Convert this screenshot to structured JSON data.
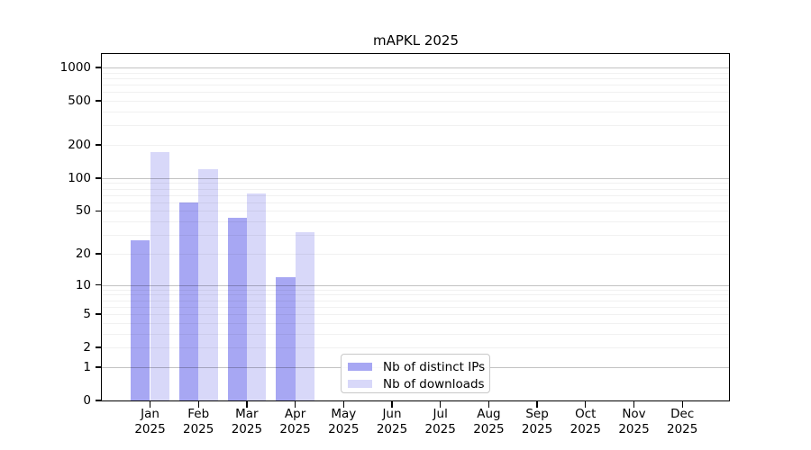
{
  "chart_data": {
    "type": "bar",
    "title": "mAPKL 2025",
    "categories": [
      "Jan",
      "Feb",
      "Mar",
      "Apr",
      "May",
      "Jun",
      "Jul",
      "Aug",
      "Sep",
      "Oct",
      "Nov",
      "Dec"
    ],
    "x_year_label": "2025",
    "series": [
      {
        "name": "Nb of distinct IPs",
        "color": "#a7a7f3",
        "values": [
          27,
          60,
          43,
          12,
          null,
          null,
          null,
          null,
          null,
          null,
          null,
          null
        ]
      },
      {
        "name": "Nb of downloads",
        "color": "#d8d8f9",
        "values": [
          173,
          120,
          73,
          32,
          null,
          null,
          null,
          null,
          null,
          null,
          null,
          null
        ]
      }
    ],
    "y_axis": {
      "ticks": [
        0,
        1,
        2,
        5,
        10,
        20,
        50,
        100,
        200,
        500,
        1000
      ],
      "scale": "log1p",
      "range": [
        0,
        1300
      ]
    },
    "grid": {
      "major_lines": [
        1,
        10,
        100,
        1000
      ],
      "minor_lines": "2-9 per decade",
      "grid_on": true
    },
    "legend": {
      "position": "lower-center",
      "items": [
        "Nb of distinct IPs",
        "Nb of downloads"
      ]
    }
  }
}
